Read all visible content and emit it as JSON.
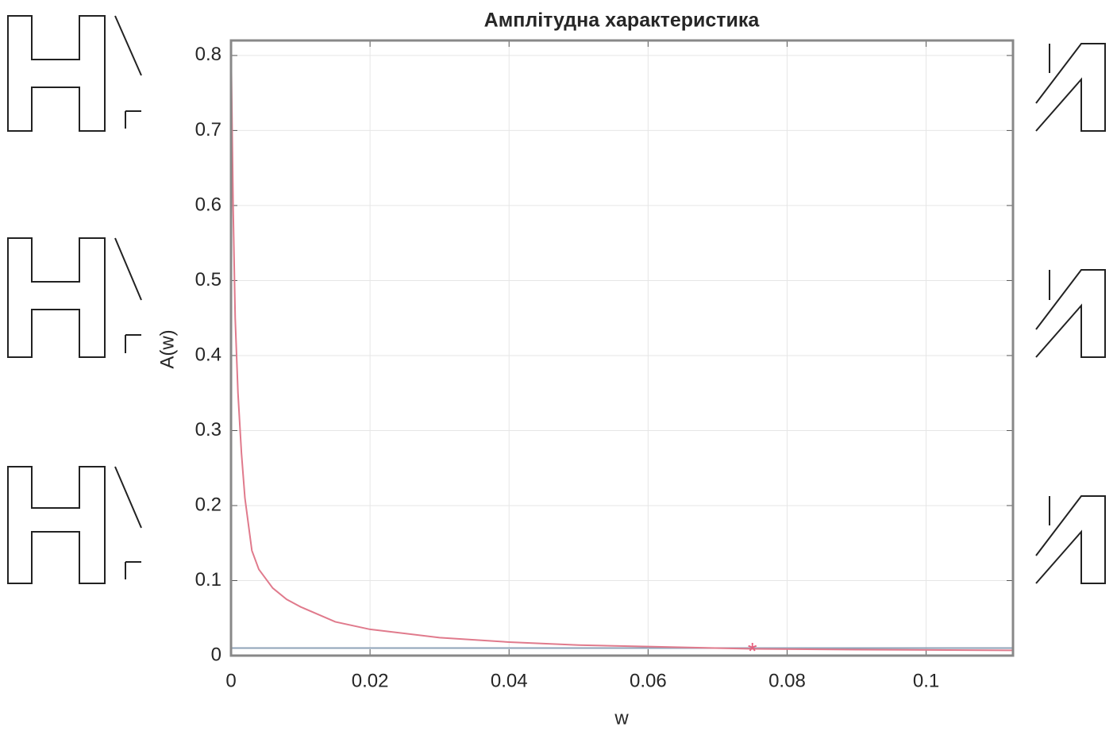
{
  "chart_data": {
    "type": "line",
    "title": "Амплітудна характеристика",
    "x_label": "w",
    "y_label": "A(w)",
    "x": [
      0,
      0.0003,
      0.0006,
      0.001,
      0.0015,
      0.002,
      0.003,
      0.004,
      0.006,
      0.008,
      0.01,
      0.015,
      0.02,
      0.03,
      0.04,
      0.05,
      0.06,
      0.075,
      0.09,
      0.1125
    ],
    "series": [
      {
        "color": "#e07a8c",
        "values": [
          0.82,
          0.6,
          0.45,
          0.35,
          0.27,
          0.21,
          0.14,
          0.115,
          0.09,
          0.075,
          0.065,
          0.045,
          0.035,
          0.024,
          0.018,
          0.014,
          0.012,
          0.009,
          0.008,
          0.007
        ]
      }
    ],
    "baseline": {
      "color": "#8fa3b8",
      "value": 0.01
    },
    "marker": {
      "x": 0.075,
      "y": 0.008,
      "color": "#e8607e"
    },
    "xlim": [
      0,
      0.1125
    ],
    "ylim": [
      0,
      0.82
    ],
    "xticks": [
      0,
      0.02,
      0.04,
      0.06,
      0.08,
      0.1
    ],
    "yticks": [
      0,
      0.1,
      0.2,
      0.3,
      0.4,
      0.5,
      0.6,
      0.7,
      0.8
    ],
    "grid": true
  }
}
